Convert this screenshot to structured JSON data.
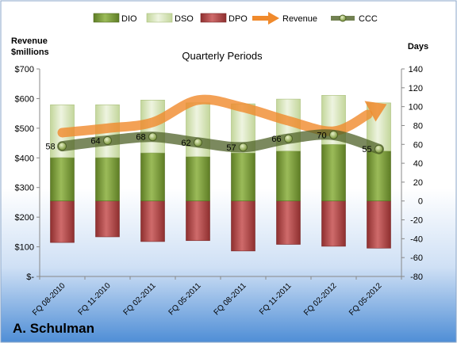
{
  "company": "A. Schulman",
  "chart_data": {
    "type": "bar",
    "title": "Quarterly Periods",
    "ylabel_left": "Revenue\n$millions",
    "ylabel_right": "Days",
    "categories": [
      "FQ 08-2010",
      "FQ 11-2010",
      "FQ 02-2011",
      "FQ 05-2011",
      "FQ 08-2011",
      "FQ 11-2011",
      "FQ 02-2012",
      "FQ 05-2012"
    ],
    "left_axis": {
      "min": 0,
      "max": 700,
      "step": 100,
      "tick_labels": [
        "$-",
        "$100",
        "$200",
        "$300",
        "$400",
        "$500",
        "$600",
        "$700"
      ]
    },
    "right_axis": {
      "min": -80,
      "max": 140,
      "step": 20,
      "tick_labels": [
        "-80",
        "-60",
        "-40",
        "-20",
        "0",
        "20",
        "40",
        "60",
        "80",
        "100",
        "120",
        "140"
      ]
    },
    "legend": {
      "position": "top",
      "entries": [
        "DIO",
        "DSO",
        "DPO",
        "Revenue",
        "CCC"
      ]
    },
    "series": [
      {
        "name": "DIO",
        "axis": "right",
        "kind": "stacked-bar",
        "color": "#7a9a3a",
        "values": [
          46,
          46,
          51,
          47,
          51,
          53,
          60,
          53
        ]
      },
      {
        "name": "DSO",
        "axis": "right",
        "kind": "stacked-bar",
        "color": "#d7e4bd",
        "values": [
          56,
          56,
          56,
          57,
          52,
          55,
          52,
          51
        ]
      },
      {
        "name": "DPO",
        "axis": "right",
        "kind": "bar-negative",
        "color": "#b94a4a",
        "values": [
          -44,
          -38,
          -43,
          -42,
          -53,
          -46,
          -48,
          -50
        ]
      },
      {
        "name": "Revenue",
        "axis": "left",
        "kind": "line-arrow",
        "color": "#f08a2c",
        "values": [
          485,
          500,
          520,
          595,
          570,
          525,
          490,
          565
        ]
      },
      {
        "name": "CCC",
        "axis": "right",
        "kind": "line",
        "color": "#4f6228",
        "values": [
          58,
          64,
          68,
          62,
          57,
          66,
          70,
          55
        ]
      }
    ],
    "data_labels": [
      "58",
      "64",
      "68",
      "62",
      "57",
      "66",
      "70",
      "55"
    ],
    "grid": false
  }
}
